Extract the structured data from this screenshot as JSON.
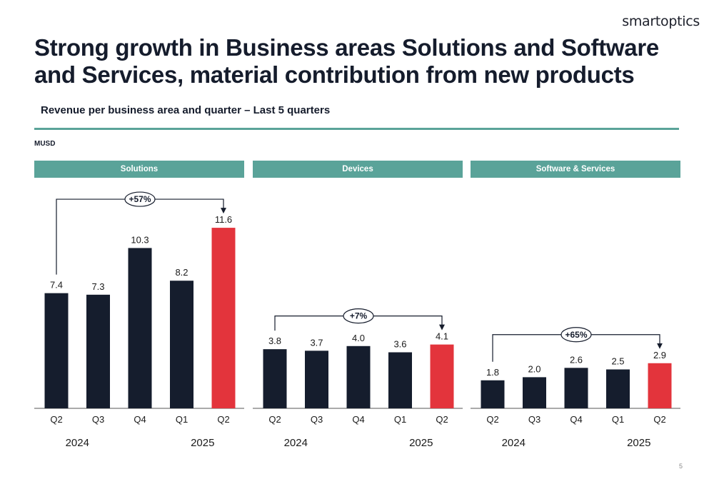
{
  "logo": "smartoptics",
  "title": "Strong growth in Business areas Solutions and Software and Services, material contribution from new products",
  "subtitle": "Revenue per business area and quarter – Last 5 quarters",
  "unit": "MUSD",
  "page_number": "5",
  "colors": {
    "header_bg": "#5aa399",
    "bar_default": "#151d2d",
    "bar_highlight": "#e3343c",
    "rule": "#5aa399"
  },
  "chart_data": [
    {
      "type": "bar",
      "title": "Solutions",
      "categories": [
        "Q2",
        "Q3",
        "Q4",
        "Q1",
        "Q2"
      ],
      "years": [
        "2024",
        "2025"
      ],
      "values": [
        7.4,
        7.3,
        10.3,
        8.2,
        11.6
      ],
      "value_labels": [
        "7.4",
        "7.3",
        "10.3",
        "8.2",
        "11.6"
      ],
      "highlight_index": 4,
      "growth_label": "+57%",
      "ylim": [
        0,
        12.2
      ]
    },
    {
      "type": "bar",
      "title": "Devices",
      "categories": [
        "Q2",
        "Q3",
        "Q4",
        "Q1",
        "Q2"
      ],
      "years": [
        "2024",
        "2025"
      ],
      "values": [
        3.8,
        3.7,
        4.0,
        3.6,
        4.1
      ],
      "value_labels": [
        "3.8",
        "3.7",
        "4.0",
        "3.6",
        "4.1"
      ],
      "highlight_index": 4,
      "growth_label": "+7%",
      "ylim": [
        0,
        12.2
      ]
    },
    {
      "type": "bar",
      "title": "Software & Services",
      "categories": [
        "Q2",
        "Q3",
        "Q4",
        "Q1",
        "Q2"
      ],
      "years": [
        "2024",
        "2025"
      ],
      "values": [
        1.8,
        2.0,
        2.6,
        2.5,
        2.9
      ],
      "value_labels": [
        "1.8",
        "2.0",
        "2.6",
        "2.5",
        "2.9"
      ],
      "highlight_index": 4,
      "growth_label": "+65%",
      "ylim": [
        0,
        12.2
      ]
    }
  ]
}
